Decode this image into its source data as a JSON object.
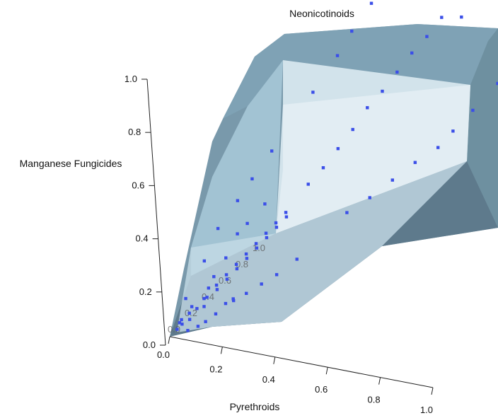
{
  "chart_data": {
    "type": "scatter",
    "title": "",
    "axes": {
      "x": {
        "label": "Pyrethroids",
        "ticks": [
          "0.0",
          "0.2",
          "0.4",
          "0.6",
          "0.8",
          "1.0"
        ]
      },
      "y": {
        "label": "Neonicotinoids"
      },
      "z": {
        "label": "Manganese Fungicides",
        "ticks": [
          "0.0",
          "0.2",
          "0.4",
          "0.6",
          "0.8",
          "1.0"
        ]
      },
      "diagonal_ticks": [
        "0.0",
        "0.2",
        "0.4",
        "0.6",
        "0.8",
        "1.0"
      ]
    },
    "hull": {
      "outer_color": "#5f8296",
      "inner_color": "#dcebf2",
      "light_color": "#a9cad9"
    },
    "point_color": "#3b4fe8",
    "point_color_dark": "#1018d0",
    "series": [
      {
        "name": "",
        "note_density": "dense cluster near origin, spreading toward upper right",
        "points": [
          [
            0.02,
            0.01,
            0.02
          ],
          [
            0.03,
            0.02,
            0.03
          ],
          [
            0.01,
            0.03,
            0.02
          ],
          [
            0.04,
            0.04,
            0.05
          ],
          [
            0.05,
            0.03,
            0.04
          ],
          [
            0.06,
            0.05,
            0.06
          ],
          [
            0.03,
            0.06,
            0.05
          ],
          [
            0.07,
            0.08,
            0.07
          ],
          [
            0.08,
            0.06,
            0.09
          ],
          [
            0.09,
            0.1,
            0.08
          ],
          [
            0.1,
            0.09,
            0.11
          ],
          [
            0.11,
            0.12,
            0.1
          ],
          [
            0.12,
            0.11,
            0.13
          ],
          [
            0.13,
            0.14,
            0.12
          ],
          [
            0.14,
            0.13,
            0.15
          ],
          [
            0.15,
            0.16,
            0.14
          ],
          [
            0.16,
            0.15,
            0.17
          ],
          [
            0.17,
            0.18,
            0.16
          ],
          [
            0.18,
            0.17,
            0.19
          ],
          [
            0.19,
            0.2,
            0.18
          ],
          [
            0.2,
            0.19,
            0.21
          ],
          [
            0.21,
            0.22,
            0.2
          ],
          [
            0.22,
            0.21,
            0.23
          ],
          [
            0.23,
            0.24,
            0.22
          ],
          [
            0.24,
            0.23,
            0.25
          ],
          [
            0.06,
            0.12,
            0.1
          ],
          [
            0.08,
            0.15,
            0.14
          ],
          [
            0.1,
            0.18,
            0.2
          ],
          [
            0.12,
            0.2,
            0.22
          ],
          [
            0.14,
            0.25,
            0.24
          ],
          [
            0.05,
            0.1,
            0.18
          ],
          [
            0.07,
            0.14,
            0.26
          ],
          [
            0.09,
            0.2,
            0.3
          ],
          [
            0.11,
            0.24,
            0.34
          ],
          [
            0.13,
            0.3,
            0.38
          ],
          [
            0.15,
            0.1,
            0.05
          ],
          [
            0.18,
            0.12,
            0.06
          ],
          [
            0.22,
            0.14,
            0.08
          ],
          [
            0.26,
            0.16,
            0.1
          ],
          [
            0.3,
            0.2,
            0.12
          ],
          [
            0.26,
            0.3,
            0.28
          ],
          [
            0.28,
            0.34,
            0.3
          ],
          [
            0.3,
            0.38,
            0.33
          ],
          [
            0.32,
            0.42,
            0.36
          ],
          [
            0.34,
            0.46,
            0.4
          ],
          [
            0.36,
            0.5,
            0.42
          ],
          [
            0.38,
            0.54,
            0.45
          ],
          [
            0.4,
            0.58,
            0.48
          ],
          [
            0.42,
            0.62,
            0.5
          ],
          [
            0.44,
            0.66,
            0.53
          ],
          [
            0.46,
            0.7,
            0.56
          ],
          [
            0.48,
            0.74,
            0.58
          ],
          [
            0.5,
            0.78,
            0.62
          ],
          [
            0.52,
            0.82,
            0.64
          ],
          [
            0.54,
            0.86,
            0.67
          ],
          [
            0.2,
            0.4,
            0.5
          ],
          [
            0.22,
            0.48,
            0.55
          ],
          [
            0.24,
            0.52,
            0.6
          ],
          [
            0.26,
            0.58,
            0.64
          ],
          [
            0.28,
            0.62,
            0.7
          ],
          [
            0.3,
            0.66,
            0.72
          ],
          [
            0.32,
            0.7,
            0.76
          ],
          [
            0.34,
            0.74,
            0.8
          ],
          [
            0.36,
            0.78,
            0.82
          ],
          [
            0.38,
            0.82,
            0.86
          ],
          [
            0.4,
            0.3,
            0.2
          ],
          [
            0.45,
            0.34,
            0.22
          ],
          [
            0.5,
            0.38,
            0.25
          ],
          [
            0.55,
            0.42,
            0.28
          ],
          [
            0.6,
            0.46,
            0.3
          ],
          [
            0.62,
            0.5,
            0.32
          ],
          [
            0.66,
            0.54,
            0.36
          ],
          [
            0.7,
            0.6,
            0.4
          ],
          [
            0.74,
            0.66,
            0.44
          ],
          [
            0.78,
            0.72,
            0.48
          ],
          [
            0.56,
            0.62,
            0.6
          ],
          [
            0.58,
            0.68,
            0.66
          ],
          [
            0.6,
            0.72,
            0.7
          ],
          [
            0.64,
            0.78,
            0.72
          ],
          [
            0.68,
            0.82,
            0.74
          ],
          [
            0.72,
            0.86,
            0.78
          ],
          [
            0.76,
            0.9,
            0.82
          ],
          [
            0.8,
            0.92,
            0.86
          ],
          [
            0.84,
            0.95,
            0.9
          ],
          [
            0.88,
            0.97,
            0.92
          ],
          [
            0.05,
            0.02,
            0.01
          ],
          [
            0.08,
            0.03,
            0.02
          ],
          [
            0.04,
            0.01,
            0.06
          ],
          [
            0.02,
            0.05,
            0.09
          ],
          [
            0.1,
            0.04,
            0.03
          ],
          [
            0.12,
            0.06,
            0.04
          ],
          [
            0.09,
            0.07,
            0.12
          ],
          [
            0.14,
            0.08,
            0.06
          ],
          [
            0.16,
            0.09,
            0.07
          ],
          [
            0.11,
            0.03,
            0.1
          ]
        ]
      }
    ],
    "grid": false,
    "legend": "none"
  }
}
